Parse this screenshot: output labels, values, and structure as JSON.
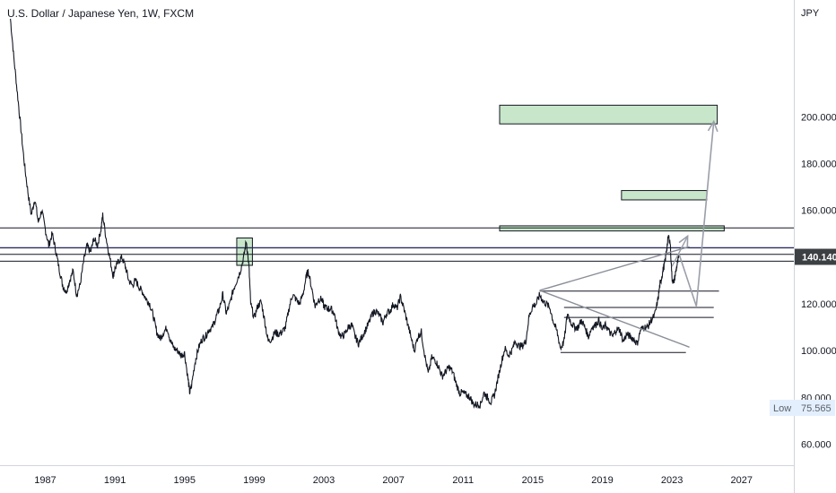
{
  "header": {
    "title": "U.S. Dollar / Japanese Yen, 1W, FXCM"
  },
  "chart_data": {
    "type": "line",
    "title": "U.S. Dollar / Japanese Yen, 1W, FXCM",
    "xlabel": "",
    "ylabel": "JPY",
    "xlim": [
      1984.4,
      2030.0
    ],
    "ylim": [
      51,
      250
    ],
    "x_ticks": [
      "1987",
      "1991",
      "1995",
      "1999",
      "2003",
      "2007",
      "2011",
      "2015",
      "2019",
      "2023",
      "2027"
    ],
    "x_tick_values": [
      1987,
      1991,
      1995,
      1999,
      2003,
      2007,
      2011,
      2015,
      2019,
      2023,
      2027
    ],
    "y_ticks": [
      "60.000",
      "80.000",
      "100.000",
      "120.000",
      "140.000",
      "160.000",
      "180.000",
      "200.000"
    ],
    "y_tick_values": [
      60,
      80,
      100,
      120,
      140,
      160,
      180,
      200
    ],
    "grid": false,
    "series": [
      {
        "color": "#131722",
        "points": [
          [
            1985.0,
            242
          ],
          [
            1985.2,
            225
          ],
          [
            1985.4,
            210
          ],
          [
            1985.6,
            195
          ],
          [
            1985.8,
            180
          ],
          [
            1986.0,
            168
          ],
          [
            1986.2,
            158
          ],
          [
            1986.4,
            165
          ],
          [
            1986.6,
            155
          ],
          [
            1986.8,
            160
          ],
          [
            1987.0,
            152
          ],
          [
            1987.2,
            145
          ],
          [
            1987.4,
            150
          ],
          [
            1987.6,
            143
          ],
          [
            1987.8,
            135
          ],
          [
            1988.0,
            128
          ],
          [
            1988.2,
            125
          ],
          [
            1988.4,
            130
          ],
          [
            1988.6,
            134
          ],
          [
            1988.8,
            124
          ],
          [
            1989.0,
            128
          ],
          [
            1989.2,
            138
          ],
          [
            1989.4,
            145
          ],
          [
            1989.6,
            142
          ],
          [
            1989.8,
            148
          ],
          [
            1990.0,
            145
          ],
          [
            1990.2,
            152
          ],
          [
            1990.3,
            158
          ],
          [
            1990.5,
            148
          ],
          [
            1990.7,
            140
          ],
          [
            1990.9,
            132
          ],
          [
            1991.0,
            135
          ],
          [
            1991.2,
            138
          ],
          [
            1991.4,
            140
          ],
          [
            1991.6,
            136
          ],
          [
            1991.8,
            130
          ],
          [
            1992.0,
            128
          ],
          [
            1992.2,
            130
          ],
          [
            1992.4,
            127
          ],
          [
            1992.6,
            125
          ],
          [
            1992.8,
            122
          ],
          [
            1993.0,
            120
          ],
          [
            1993.2,
            115
          ],
          [
            1993.4,
            108
          ],
          [
            1993.6,
            105
          ],
          [
            1993.8,
            108
          ],
          [
            1994.0,
            110
          ],
          [
            1994.2,
            104
          ],
          [
            1994.4,
            101
          ],
          [
            1994.6,
            100
          ],
          [
            1994.8,
            98
          ],
          [
            1995.0,
            99
          ],
          [
            1995.2,
            88
          ],
          [
            1995.3,
            82
          ],
          [
            1995.4,
            85
          ],
          [
            1995.6,
            95
          ],
          [
            1995.8,
            101
          ],
          [
            1996.0,
            105
          ],
          [
            1996.2,
            106
          ],
          [
            1996.4,
            109
          ],
          [
            1996.6,
            110
          ],
          [
            1996.8,
            114
          ],
          [
            1997.0,
            118
          ],
          [
            1997.2,
            124
          ],
          [
            1997.4,
            116
          ],
          [
            1997.6,
            120
          ],
          [
            1997.8,
            126
          ],
          [
            1998.0,
            130
          ],
          [
            1998.2,
            134
          ],
          [
            1998.4,
            140
          ],
          [
            1998.55,
            147
          ],
          [
            1998.7,
            136
          ],
          [
            1998.8,
            120
          ],
          [
            1999.0,
            114
          ],
          [
            1999.2,
            119
          ],
          [
            1999.4,
            121
          ],
          [
            1999.6,
            113
          ],
          [
            1999.8,
            104
          ],
          [
            2000.0,
            105
          ],
          [
            2000.2,
            108
          ],
          [
            2000.4,
            107
          ],
          [
            2000.6,
            108
          ],
          [
            2000.8,
            110
          ],
          [
            2001.0,
            118
          ],
          [
            2001.2,
            124
          ],
          [
            2001.4,
            122
          ],
          [
            2001.6,
            120
          ],
          [
            2001.8,
            124
          ],
          [
            2002.0,
            132
          ],
          [
            2002.1,
            134
          ],
          [
            2002.3,
            127
          ],
          [
            2002.5,
            119
          ],
          [
            2002.7,
            122
          ],
          [
            2002.9,
            122
          ],
          [
            2003.0,
            119
          ],
          [
            2003.2,
            118
          ],
          [
            2003.4,
            118
          ],
          [
            2003.6,
            116
          ],
          [
            2003.8,
            109
          ],
          [
            2004.0,
            106
          ],
          [
            2004.2,
            107
          ],
          [
            2004.4,
            110
          ],
          [
            2004.6,
            111
          ],
          [
            2004.8,
            106
          ],
          [
            2005.0,
            103
          ],
          [
            2005.2,
            106
          ],
          [
            2005.4,
            109
          ],
          [
            2005.6,
            112
          ],
          [
            2005.8,
            116
          ],
          [
            2006.0,
            117
          ],
          [
            2006.2,
            115
          ],
          [
            2006.4,
            112
          ],
          [
            2006.6,
            116
          ],
          [
            2006.8,
            117
          ],
          [
            2007.0,
            120
          ],
          [
            2007.2,
            118
          ],
          [
            2007.4,
            123
          ],
          [
            2007.6,
            118
          ],
          [
            2007.8,
            112
          ],
          [
            2008.0,
            106
          ],
          [
            2008.2,
            100
          ],
          [
            2008.4,
            106
          ],
          [
            2008.6,
            108
          ],
          [
            2008.8,
            98
          ],
          [
            2009.0,
            90
          ],
          [
            2009.2,
            97
          ],
          [
            2009.4,
            96
          ],
          [
            2009.6,
            93
          ],
          [
            2009.8,
            89
          ],
          [
            2010.0,
            91
          ],
          [
            2010.2,
            93
          ],
          [
            2010.4,
            91
          ],
          [
            2010.6,
            86
          ],
          [
            2010.8,
            82
          ],
          [
            2011.0,
            82
          ],
          [
            2011.2,
            81
          ],
          [
            2011.4,
            80
          ],
          [
            2011.6,
            77
          ],
          [
            2011.8,
            77
          ],
          [
            2012.0,
            77
          ],
          [
            2012.2,
            82
          ],
          [
            2012.4,
            80
          ],
          [
            2012.6,
            78
          ],
          [
            2012.8,
            81
          ],
          [
            2013.0,
            88
          ],
          [
            2013.2,
            95
          ],
          [
            2013.4,
            101
          ],
          [
            2013.6,
            98
          ],
          [
            2013.8,
            100
          ],
          [
            2014.0,
            104
          ],
          [
            2014.2,
            102
          ],
          [
            2014.4,
            102
          ],
          [
            2014.6,
            104
          ],
          [
            2014.8,
            115
          ],
          [
            2015.0,
            119
          ],
          [
            2015.2,
            120
          ],
          [
            2015.4,
            124
          ],
          [
            2015.6,
            121
          ],
          [
            2015.8,
            120
          ],
          [
            2016.0,
            118
          ],
          [
            2016.2,
            112
          ],
          [
            2016.4,
            108
          ],
          [
            2016.6,
            101
          ],
          [
            2016.8,
            104
          ],
          [
            2017.0,
            116
          ],
          [
            2017.2,
            112
          ],
          [
            2017.4,
            110
          ],
          [
            2017.6,
            110
          ],
          [
            2017.8,
            113
          ],
          [
            2018.0,
            110
          ],
          [
            2018.2,
            106
          ],
          [
            2018.4,
            110
          ],
          [
            2018.6,
            111
          ],
          [
            2018.8,
            113
          ],
          [
            2019.0,
            109
          ],
          [
            2019.2,
            111
          ],
          [
            2019.4,
            108
          ],
          [
            2019.6,
            106
          ],
          [
            2019.8,
            109
          ],
          [
            2020.0,
            109
          ],
          [
            2020.2,
            104
          ],
          [
            2020.4,
            107
          ],
          [
            2020.6,
            106
          ],
          [
            2020.8,
            105
          ],
          [
            2021.0,
            103
          ],
          [
            2021.2,
            109
          ],
          [
            2021.4,
            110
          ],
          [
            2021.6,
            110
          ],
          [
            2021.8,
            113
          ],
          [
            2022.0,
            115
          ],
          [
            2022.2,
            122
          ],
          [
            2022.3,
            128
          ],
          [
            2022.4,
            131
          ],
          [
            2022.5,
            135
          ],
          [
            2022.6,
            138
          ],
          [
            2022.7,
            144
          ],
          [
            2022.8,
            149
          ],
          [
            2022.9,
            146
          ],
          [
            2023.0,
            131
          ],
          [
            2023.1,
            129
          ],
          [
            2023.2,
            133
          ],
          [
            2023.3,
            137
          ],
          [
            2023.4,
            140
          ]
        ]
      }
    ],
    "last_price": "140.140",
    "low_label": "Low",
    "low_value": "75.565",
    "annotations": {
      "horizontal_levels": [
        152.5,
        144,
        141.2,
        138.3
      ],
      "support_lines": [
        {
          "from": [
            2015.4,
            125.5
          ],
          "to": [
            2025.7,
            125.5
          ]
        },
        {
          "from": [
            2016.8,
            118.5
          ],
          "to": [
            2025.4,
            118.5
          ]
        },
        {
          "from": [
            2016.8,
            114.2
          ],
          "to": [
            2025.4,
            114.2
          ]
        },
        {
          "from": [
            2016.6,
            99.2
          ],
          "to": [
            2023.8,
            99.2
          ]
        }
      ],
      "trend_lines": [
        {
          "from": [
            2015.4,
            125.8
          ],
          "to": [
            2024.0,
            144.5
          ]
        },
        {
          "from": [
            2015.4,
            125.8
          ],
          "to": [
            2024.0,
            101.5
          ]
        }
      ],
      "projection_path": [
        [
          2023.4,
          141.5
        ],
        [
          2024.4,
          119
        ],
        [
          2025.4,
          198
        ]
      ],
      "small_projection": [
        [
          2023.0,
          136
        ],
        [
          2023.9,
          149
        ]
      ],
      "zones": [
        {
          "x0": 2013.1,
          "x1": 2025.6,
          "y0": 197,
          "y1": 205,
          "color": "#c8e6c9"
        },
        {
          "x0": 2020.1,
          "x1": 2025.0,
          "y0": 164.5,
          "y1": 168.5,
          "color": "#c8e6c9"
        },
        {
          "x0": 2013.1,
          "x1": 2026.0,
          "y0": 151.2,
          "y1": 153.4,
          "color": "#c8e6c9"
        },
        {
          "x0": 1998.0,
          "x1": 1998.9,
          "y0": 136.5,
          "y1": 148.2,
          "color": "#c8e6c9"
        }
      ]
    }
  }
}
